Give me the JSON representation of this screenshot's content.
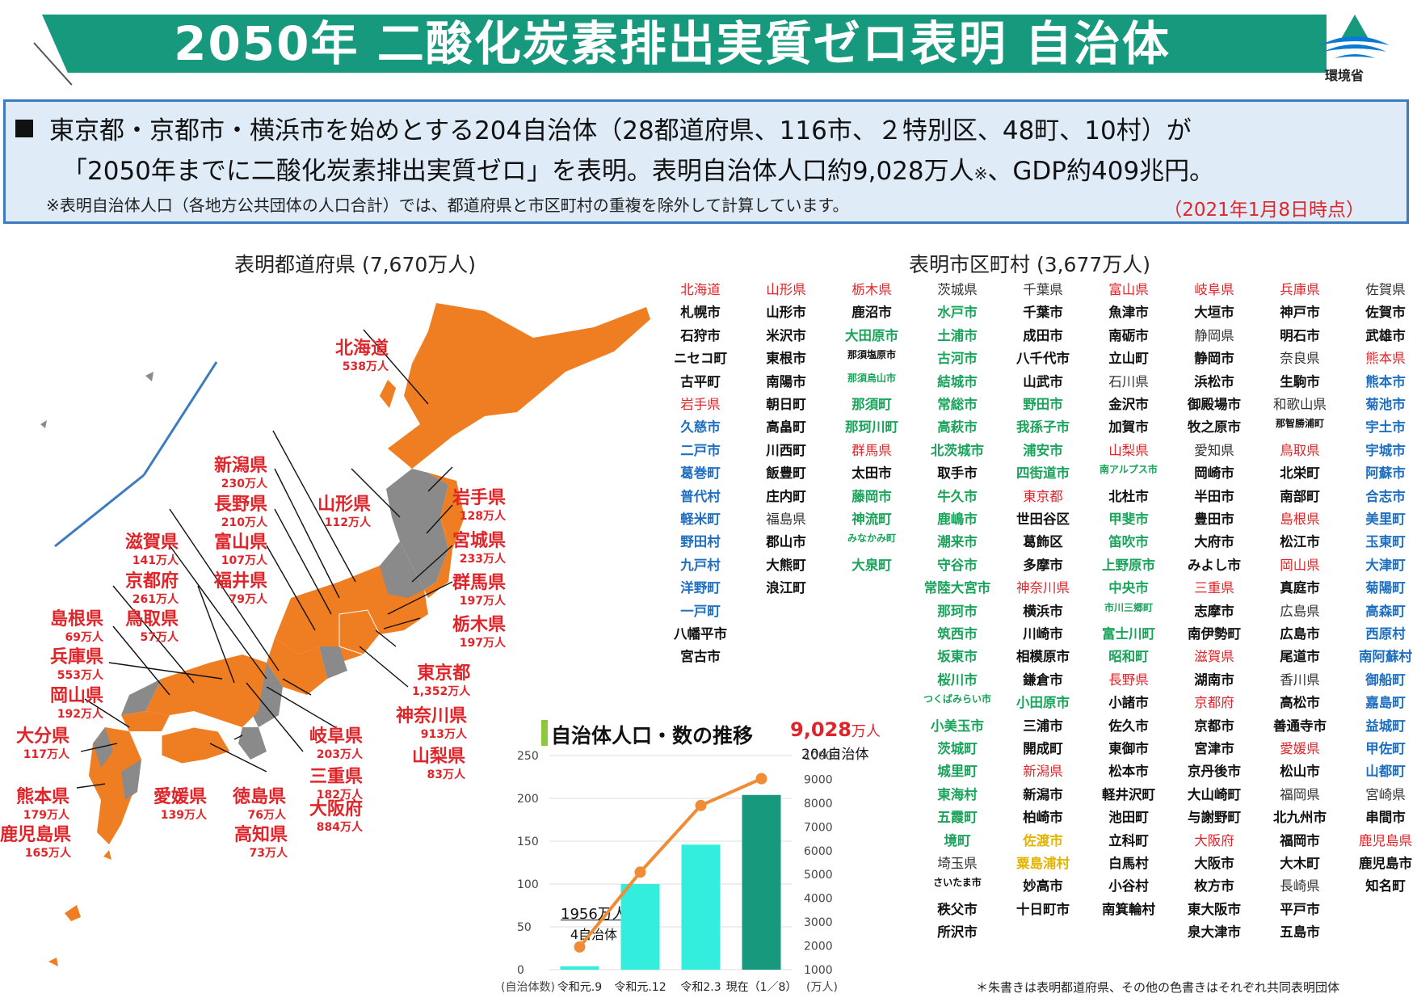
{
  "header": {
    "title": "2050年 二酸化炭素排出実質ゼロ表明 自治体",
    "logo_label": "環境省",
    "logo_icon": "ministry-of-environment-logo"
  },
  "summary": {
    "line1": "東京都・京都市・横浜市を始めとする204自治体（28都道府県、116市、２特別区、48町、10村）が",
    "line2_a": "「2050年までに二酸化炭素排出実質ゼロ」を表明。表明自治体人口約9,028万人",
    "line2_mark": "※",
    "line2_b": "、GDP約409兆円。",
    "note": "※表明自治体人口（各地方公共団体の人口合計）では、都道府県と市区町村の重複を除外して計算しています。",
    "date": "（2021年1月8日時点）"
  },
  "sections": {
    "prefectures": "表明都道府県 (7,670万人)",
    "municipalities": "表明市区町村 (3,677万人)"
  },
  "map_labels": [
    {
      "name": "北海道",
      "pop": "538万人"
    },
    {
      "name": "新潟県",
      "pop": "230万人"
    },
    {
      "name": "長野県",
      "pop": "210万人"
    },
    {
      "name": "山形県",
      "pop": "112万人"
    },
    {
      "name": "岩手県",
      "pop": "128万人"
    },
    {
      "name": "宮城県",
      "pop": "233万人"
    },
    {
      "name": "滋賀県",
      "pop": "141万人"
    },
    {
      "name": "富山県",
      "pop": "107万人"
    },
    {
      "name": "京都府",
      "pop": "261万人"
    },
    {
      "name": "福井県",
      "pop": "79万人"
    },
    {
      "name": "群馬県",
      "pop": "197万人"
    },
    {
      "name": "島根県",
      "pop": "69万人"
    },
    {
      "name": "鳥取県",
      "pop": "57万人"
    },
    {
      "name": "栃木県",
      "pop": "197万人"
    },
    {
      "name": "兵庫県",
      "pop": "553万人"
    },
    {
      "name": "東京都",
      "pop": "1,352万人"
    },
    {
      "name": "岡山県",
      "pop": "192万人"
    },
    {
      "name": "神奈川県",
      "pop": "913万人"
    },
    {
      "name": "大分県",
      "pop": "117万人"
    },
    {
      "name": "岐阜県",
      "pop": "203万人"
    },
    {
      "name": "山梨県",
      "pop": "83万人"
    },
    {
      "name": "三重県",
      "pop": "182万人"
    },
    {
      "name": "熊本県",
      "pop": "179万人"
    },
    {
      "name": "愛媛県",
      "pop": "139万人"
    },
    {
      "name": "徳島県",
      "pop": "76万人"
    },
    {
      "name": "大阪府",
      "pop": "884万人"
    },
    {
      "name": "鹿児島県",
      "pop": "165万人"
    },
    {
      "name": "高知県",
      "pop": "73万人"
    }
  ],
  "chart_data": {
    "type": "bar",
    "title": "自治体人口・数の推移",
    "highlight_value": "9,028",
    "highlight_unit": "万人",
    "highlight_count": "204自治体",
    "first_value": "1956万人",
    "first_count": "4自治体",
    "categories": [
      "令和元.9",
      "令和元.12",
      "令和2.3",
      "現在（1／8）"
    ],
    "series": [
      {
        "name": "自治体数",
        "type": "bar",
        "values": [
          4,
          100,
          146,
          204
        ]
      },
      {
        "name": "人口",
        "type": "line",
        "values": [
          1956,
          5100,
          7900,
          9028
        ]
      }
    ],
    "left_axis_label": "(自治体数)",
    "right_axis_label": "(万人)",
    "left_ticks": [
      "250",
      "200",
      "150",
      "100",
      "50",
      "0"
    ],
    "right_ticks": [
      "10000",
      "9000",
      "8000",
      "7000",
      "6000",
      "5000",
      "4000",
      "3000",
      "2000",
      "1000"
    ],
    "ylim_left": [
      0,
      250
    ],
    "ylim_right": [
      1000,
      10000
    ],
    "colors": {
      "bar": "#33eedd",
      "bar_current": "#17997e",
      "line": "#ef8c35"
    }
  },
  "municipality_columns": [
    [
      {
        "t": "北海道",
        "c": "red",
        "p": true
      },
      {
        "t": "札幌市",
        "c": "black"
      },
      {
        "t": "石狩市",
        "c": "black"
      },
      {
        "t": "ニセコ町",
        "c": "black"
      },
      {
        "t": "古平町",
        "c": "black"
      },
      {
        "t": "岩手県",
        "c": "red",
        "p": true
      },
      {
        "t": "久慈市",
        "c": "blue"
      },
      {
        "t": "二戸市",
        "c": "blue"
      },
      {
        "t": "葛巻町",
        "c": "blue"
      },
      {
        "t": "普代村",
        "c": "blue"
      },
      {
        "t": "軽米町",
        "c": "blue"
      },
      {
        "t": "野田村",
        "c": "blue"
      },
      {
        "t": "九戸村",
        "c": "blue"
      },
      {
        "t": "洋野町",
        "c": "blue"
      },
      {
        "t": "一戸町",
        "c": "blue"
      },
      {
        "t": "八幡平市",
        "c": "black"
      },
      {
        "t": "宮古市",
        "c": "black"
      }
    ],
    [
      {
        "t": "山形県",
        "c": "red",
        "p": true
      },
      {
        "t": "山形市",
        "c": "black"
      },
      {
        "t": "米沢市",
        "c": "black"
      },
      {
        "t": "東根市",
        "c": "black"
      },
      {
        "t": "南陽市",
        "c": "black"
      },
      {
        "t": "朝日町",
        "c": "black"
      },
      {
        "t": "高畠町",
        "c": "black"
      },
      {
        "t": "川西町",
        "c": "black"
      },
      {
        "t": "飯豊町",
        "c": "black"
      },
      {
        "t": "庄内町",
        "c": "black"
      },
      {
        "t": "福島県",
        "c": "gray",
        "p": true
      },
      {
        "t": "郡山市",
        "c": "black"
      },
      {
        "t": "大熊町",
        "c": "black"
      },
      {
        "t": "浪江町",
        "c": "black"
      }
    ],
    [
      {
        "t": "栃木県",
        "c": "red",
        "p": true
      },
      {
        "t": "鹿沼市",
        "c": "black"
      },
      {
        "t": "大田原市",
        "c": "green"
      },
      {
        "t": "那須塩原市",
        "c": "black",
        "s": true
      },
      {
        "t": "那須烏山市",
        "c": "green",
        "s": true
      },
      {
        "t": "那須町",
        "c": "green"
      },
      {
        "t": "那珂川町",
        "c": "green"
      },
      {
        "t": "群馬県",
        "c": "red",
        "p": true
      },
      {
        "t": "太田市",
        "c": "black"
      },
      {
        "t": "藤岡市",
        "c": "green"
      },
      {
        "t": "神流町",
        "c": "green"
      },
      {
        "t": "みなかみ町",
        "c": "green",
        "s": true
      },
      {
        "t": "大泉町",
        "c": "green"
      }
    ],
    [
      {
        "t": "茨城県",
        "c": "gray",
        "p": true
      },
      {
        "t": "水戸市",
        "c": "green"
      },
      {
        "t": "土浦市",
        "c": "green"
      },
      {
        "t": "古河市",
        "c": "green"
      },
      {
        "t": "結城市",
        "c": "green"
      },
      {
        "t": "常総市",
        "c": "green"
      },
      {
        "t": "高萩市",
        "c": "green"
      },
      {
        "t": "北茨城市",
        "c": "green"
      },
      {
        "t": "取手市",
        "c": "black"
      },
      {
        "t": "牛久市",
        "c": "green"
      },
      {
        "t": "鹿嶋市",
        "c": "green"
      },
      {
        "t": "潮来市",
        "c": "green"
      },
      {
        "t": "守谷市",
        "c": "green"
      },
      {
        "t": "常陸大宮市",
        "c": "green"
      },
      {
        "t": "那珂市",
        "c": "green"
      },
      {
        "t": "筑西市",
        "c": "green"
      },
      {
        "t": "坂東市",
        "c": "green"
      },
      {
        "t": "桜川市",
        "c": "green"
      },
      {
        "t": "つくばみらい市",
        "c": "green",
        "s": true
      },
      {
        "t": "小美玉市",
        "c": "green"
      },
      {
        "t": "茨城町",
        "c": "green"
      },
      {
        "t": "城里町",
        "c": "green"
      },
      {
        "t": "東海村",
        "c": "green"
      },
      {
        "t": "五霞町",
        "c": "green"
      },
      {
        "t": "境町",
        "c": "green"
      },
      {
        "t": "埼玉県",
        "c": "gray",
        "p": true
      },
      {
        "t": "さいたま市",
        "c": "black",
        "s": true
      },
      {
        "t": "秩父市",
        "c": "black"
      },
      {
        "t": "所沢市",
        "c": "black"
      }
    ],
    [
      {
        "t": "千葉県",
        "c": "gray",
        "p": true
      },
      {
        "t": "千葉市",
        "c": "black"
      },
      {
        "t": "成田市",
        "c": "black"
      },
      {
        "t": "八千代市",
        "c": "black"
      },
      {
        "t": "山武市",
        "c": "black"
      },
      {
        "t": "野田市",
        "c": "green"
      },
      {
        "t": "我孫子市",
        "c": "green"
      },
      {
        "t": "浦安市",
        "c": "green"
      },
      {
        "t": "四街道市",
        "c": "green"
      },
      {
        "t": "東京都",
        "c": "red",
        "p": true
      },
      {
        "t": "世田谷区",
        "c": "black"
      },
      {
        "t": "葛飾区",
        "c": "black"
      },
      {
        "t": "多摩市",
        "c": "black"
      },
      {
        "t": "神奈川県",
        "c": "red",
        "p": true
      },
      {
        "t": "横浜市",
        "c": "black"
      },
      {
        "t": "川崎市",
        "c": "black"
      },
      {
        "t": "相模原市",
        "c": "black"
      },
      {
        "t": "鎌倉市",
        "c": "black"
      },
      {
        "t": "小田原市",
        "c": "green"
      },
      {
        "t": "三浦市",
        "c": "black"
      },
      {
        "t": "開成町",
        "c": "black"
      },
      {
        "t": "新潟県",
        "c": "red",
        "p": true
      },
      {
        "t": "新潟市",
        "c": "black"
      },
      {
        "t": "柏崎市",
        "c": "black"
      },
      {
        "t": "佐渡市",
        "c": "yellow"
      },
      {
        "t": "粟島浦村",
        "c": "yellow"
      },
      {
        "t": "妙高市",
        "c": "black"
      },
      {
        "t": "十日町市",
        "c": "black"
      }
    ],
    [
      {
        "t": "富山県",
        "c": "red",
        "p": true
      },
      {
        "t": "魚津市",
        "c": "black"
      },
      {
        "t": "南砺市",
        "c": "black"
      },
      {
        "t": "立山町",
        "c": "black"
      },
      {
        "t": "石川県",
        "c": "gray",
        "p": true
      },
      {
        "t": "金沢市",
        "c": "black"
      },
      {
        "t": "加賀市",
        "c": "black"
      },
      {
        "t": "山梨県",
        "c": "red",
        "p": true
      },
      {
        "t": "南アルプス市",
        "c": "green",
        "s": true
      },
      {
        "t": "北杜市",
        "c": "black"
      },
      {
        "t": "甲斐市",
        "c": "green"
      },
      {
        "t": "笛吹市",
        "c": "green"
      },
      {
        "t": "上野原市",
        "c": "green"
      },
      {
        "t": "中央市",
        "c": "green"
      },
      {
        "t": "市川三郷町",
        "c": "green",
        "s": true
      },
      {
        "t": "富士川町",
        "c": "green"
      },
      {
        "t": "昭和町",
        "c": "green"
      },
      {
        "t": "長野県",
        "c": "red",
        "p": true
      },
      {
        "t": "小諸市",
        "c": "black"
      },
      {
        "t": "佐久市",
        "c": "black"
      },
      {
        "t": "東御市",
        "c": "black"
      },
      {
        "t": "松本市",
        "c": "black"
      },
      {
        "t": "軽井沢町",
        "c": "black"
      },
      {
        "t": "池田町",
        "c": "black"
      },
      {
        "t": "立科町",
        "c": "black"
      },
      {
        "t": "白馬村",
        "c": "black"
      },
      {
        "t": "小谷村",
        "c": "black"
      },
      {
        "t": "南箕輪村",
        "c": "black"
      }
    ],
    [
      {
        "t": "岐阜県",
        "c": "red",
        "p": true
      },
      {
        "t": "大垣市",
        "c": "black"
      },
      {
        "t": "静岡県",
        "c": "gray",
        "p": true
      },
      {
        "t": "静岡市",
        "c": "black"
      },
      {
        "t": "浜松市",
        "c": "black"
      },
      {
        "t": "御殿場市",
        "c": "black"
      },
      {
        "t": "牧之原市",
        "c": "black"
      },
      {
        "t": "愛知県",
        "c": "gray",
        "p": true
      },
      {
        "t": "岡崎市",
        "c": "black"
      },
      {
        "t": "半田市",
        "c": "black"
      },
      {
        "t": "豊田市",
        "c": "black"
      },
      {
        "t": "大府市",
        "c": "black"
      },
      {
        "t": "みよし市",
        "c": "black"
      },
      {
        "t": "三重県",
        "c": "red",
        "p": true
      },
      {
        "t": "志摩市",
        "c": "black"
      },
      {
        "t": "南伊勢町",
        "c": "black"
      },
      {
        "t": "滋賀県",
        "c": "red",
        "p": true
      },
      {
        "t": "湖南市",
        "c": "black"
      },
      {
        "t": "京都府",
        "c": "red",
        "p": true
      },
      {
        "t": "京都市",
        "c": "black"
      },
      {
        "t": "宮津市",
        "c": "black"
      },
      {
        "t": "京丹後市",
        "c": "black"
      },
      {
        "t": "大山崎町",
        "c": "black"
      },
      {
        "t": "与謝野町",
        "c": "black"
      },
      {
        "t": "大阪府",
        "c": "red",
        "p": true
      },
      {
        "t": "大阪市",
        "c": "black"
      },
      {
        "t": "枚方市",
        "c": "black"
      },
      {
        "t": "東大阪市",
        "c": "black"
      },
      {
        "t": "泉大津市",
        "c": "black"
      }
    ],
    [
      {
        "t": "兵庫県",
        "c": "red",
        "p": true
      },
      {
        "t": "神戸市",
        "c": "black"
      },
      {
        "t": "明石市",
        "c": "black"
      },
      {
        "t": "奈良県",
        "c": "gray",
        "p": true
      },
      {
        "t": "生駒市",
        "c": "black"
      },
      {
        "t": "和歌山県",
        "c": "gray",
        "p": true
      },
      {
        "t": "那智勝浦町",
        "c": "black",
        "s": true
      },
      {
        "t": "鳥取県",
        "c": "red",
        "p": true
      },
      {
        "t": "北栄町",
        "c": "black"
      },
      {
        "t": "南部町",
        "c": "black"
      },
      {
        "t": "島根県",
        "c": "red",
        "p": true
      },
      {
        "t": "松江市",
        "c": "black"
      },
      {
        "t": "岡山県",
        "c": "red",
        "p": true
      },
      {
        "t": "真庭市",
        "c": "black"
      },
      {
        "t": "広島県",
        "c": "gray",
        "p": true
      },
      {
        "t": "広島市",
        "c": "black"
      },
      {
        "t": "尾道市",
        "c": "black"
      },
      {
        "t": "香川県",
        "c": "gray",
        "p": true
      },
      {
        "t": "高松市",
        "c": "black"
      },
      {
        "t": "善通寺市",
        "c": "black"
      },
      {
        "t": "愛媛県",
        "c": "red",
        "p": true
      },
      {
        "t": "松山市",
        "c": "black"
      },
      {
        "t": "福岡県",
        "c": "gray",
        "p": true
      },
      {
        "t": "北九州市",
        "c": "black"
      },
      {
        "t": "福岡市",
        "c": "black"
      },
      {
        "t": "大木町",
        "c": "black"
      },
      {
        "t": "長崎県",
        "c": "gray",
        "p": true
      },
      {
        "t": "平戸市",
        "c": "black"
      },
      {
        "t": "五島市",
        "c": "black"
      }
    ],
    [
      {
        "t": "佐賀県",
        "c": "gray",
        "p": true
      },
      {
        "t": "佐賀市",
        "c": "black"
      },
      {
        "t": "武雄市",
        "c": "black"
      },
      {
        "t": "熊本県",
        "c": "red",
        "p": true
      },
      {
        "t": "熊本市",
        "c": "blue"
      },
      {
        "t": "菊池市",
        "c": "blue"
      },
      {
        "t": "宇土市",
        "c": "blue"
      },
      {
        "t": "宇城市",
        "c": "blue"
      },
      {
        "t": "阿蘇市",
        "c": "blue"
      },
      {
        "t": "合志市",
        "c": "blue"
      },
      {
        "t": "美里町",
        "c": "blue"
      },
      {
        "t": "玉東町",
        "c": "blue"
      },
      {
        "t": "大津町",
        "c": "blue"
      },
      {
        "t": "菊陽町",
        "c": "blue"
      },
      {
        "t": "高森町",
        "c": "blue"
      },
      {
        "t": "西原村",
        "c": "blue"
      },
      {
        "t": "南阿蘇村",
        "c": "blue"
      },
      {
        "t": "御船町",
        "c": "blue"
      },
      {
        "t": "嘉島町",
        "c": "blue"
      },
      {
        "t": "益城町",
        "c": "blue"
      },
      {
        "t": "甲佐町",
        "c": "blue"
      },
      {
        "t": "山都町",
        "c": "blue"
      },
      {
        "t": "宮崎県",
        "c": "gray",
        "p": true
      },
      {
        "t": "串間市",
        "c": "black"
      },
      {
        "t": "鹿児島県",
        "c": "red",
        "p": true
      },
      {
        "t": "鹿児島市",
        "c": "black"
      },
      {
        "t": "知名町",
        "c": "black"
      }
    ]
  ],
  "footnote": "＊朱書きは表明都道府県、その他の色書きはそれぞれ共同表明団体"
}
